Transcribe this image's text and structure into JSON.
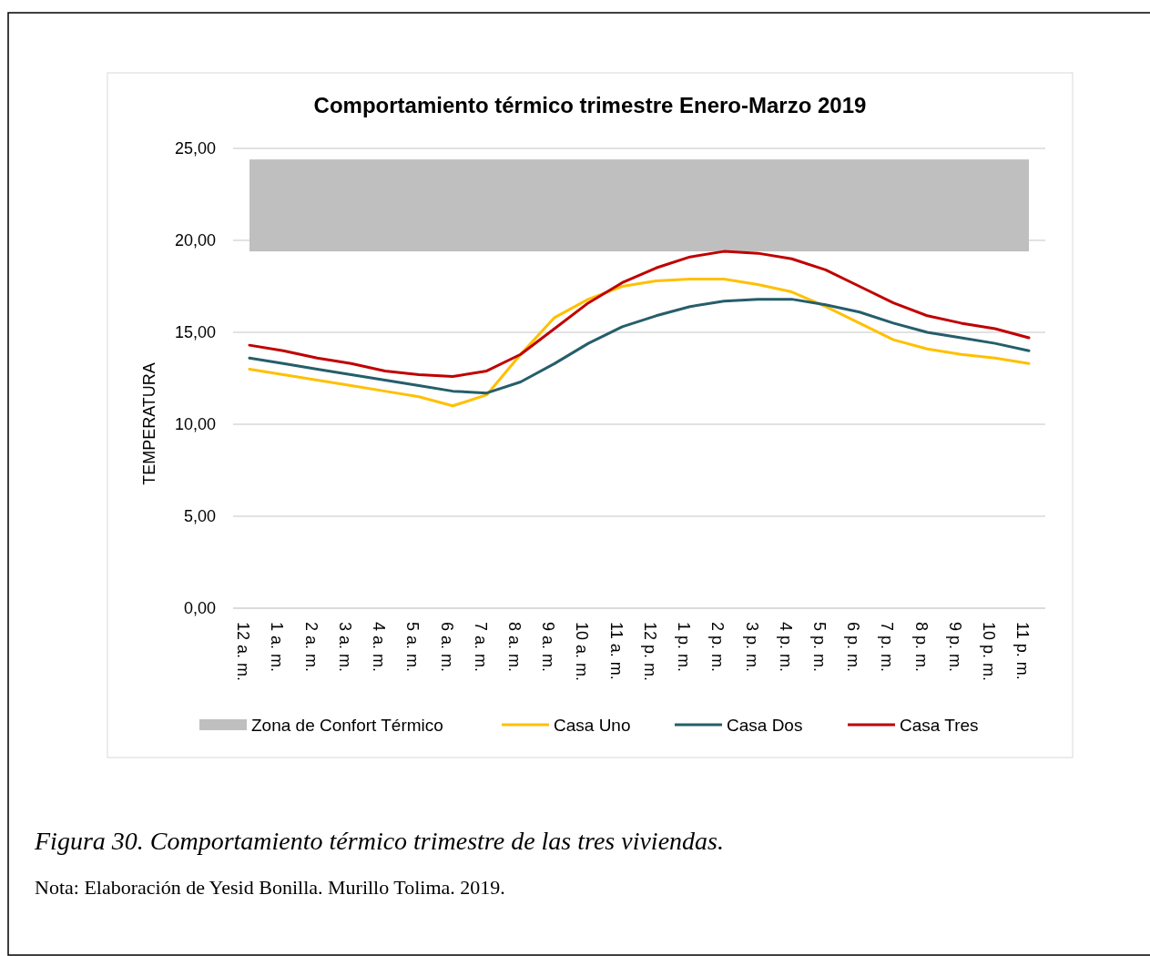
{
  "chart_data": {
    "type": "line",
    "title": "Comportamiento térmico trimestre Enero-Marzo 2019",
    "ylabel": "TEMPERATURA",
    "categories": [
      "12 a. m.",
      "1 a. m.",
      "2 a. m.",
      "3 a. m.",
      "4 a. m.",
      "5 a. m.",
      "6 a. m.",
      "7 a. m.",
      "8 a. m.",
      "9 a. m.",
      "10 a. m.",
      "11 a. m.",
      "12 p. m.",
      "1 p. m.",
      "2 p. m.",
      "3 p. m.",
      "4 p. m.",
      "5 p. m.",
      "6 p. m.",
      "7 p. m.",
      "8 p. m.",
      "9 p. m.",
      "10 p. m.",
      "11 p. m."
    ],
    "series": [
      {
        "name": "Casa Uno",
        "color": "#ffc000",
        "values": [
          13.0,
          12.7,
          12.4,
          12.1,
          11.8,
          11.5,
          11.0,
          11.6,
          13.8,
          15.8,
          16.8,
          17.5,
          17.8,
          17.9,
          17.9,
          17.6,
          17.2,
          16.4,
          15.5,
          14.6,
          14.1,
          13.8,
          13.6,
          13.3
        ]
      },
      {
        "name": "Casa Dos",
        "color": "#255e6b",
        "values": [
          13.6,
          13.3,
          13.0,
          12.7,
          12.4,
          12.1,
          11.8,
          11.7,
          12.3,
          13.3,
          14.4,
          15.3,
          15.9,
          16.4,
          16.7,
          16.8,
          16.8,
          16.5,
          16.1,
          15.5,
          15.0,
          14.7,
          14.4,
          14.0
        ]
      },
      {
        "name": "Casa Tres",
        "color": "#c00000",
        "values": [
          14.3,
          14.0,
          13.6,
          13.3,
          12.9,
          12.7,
          12.6,
          12.9,
          13.8,
          15.2,
          16.6,
          17.7,
          18.5,
          19.1,
          19.4,
          19.3,
          19.0,
          18.4,
          17.5,
          16.6,
          15.9,
          15.5,
          15.2,
          14.7
        ]
      }
    ],
    "bands": [
      {
        "axis": "y",
        "from": 19.4,
        "to": 24.4,
        "label": "Zona de Confort Térmico",
        "color": "#bfbfbf"
      }
    ],
    "ylim": [
      0,
      25
    ],
    "yticks": [
      {
        "value": 0,
        "label": "0,00"
      },
      {
        "value": 5,
        "label": "5,00"
      },
      {
        "value": 10,
        "label": "10,00"
      },
      {
        "value": 15,
        "label": "15,00"
      },
      {
        "value": 20,
        "label": "20,00"
      },
      {
        "value": 25,
        "label": "25,00"
      }
    ],
    "grid": "y",
    "legend": "bottom",
    "line_style": "solid",
    "annotations": [
      "Figura 30. Comportamiento térmico trimestre de las tres viviendas.",
      "Nota: Elaboración de Yesid Bonilla. Murillo Tolima. 2019."
    ]
  }
}
